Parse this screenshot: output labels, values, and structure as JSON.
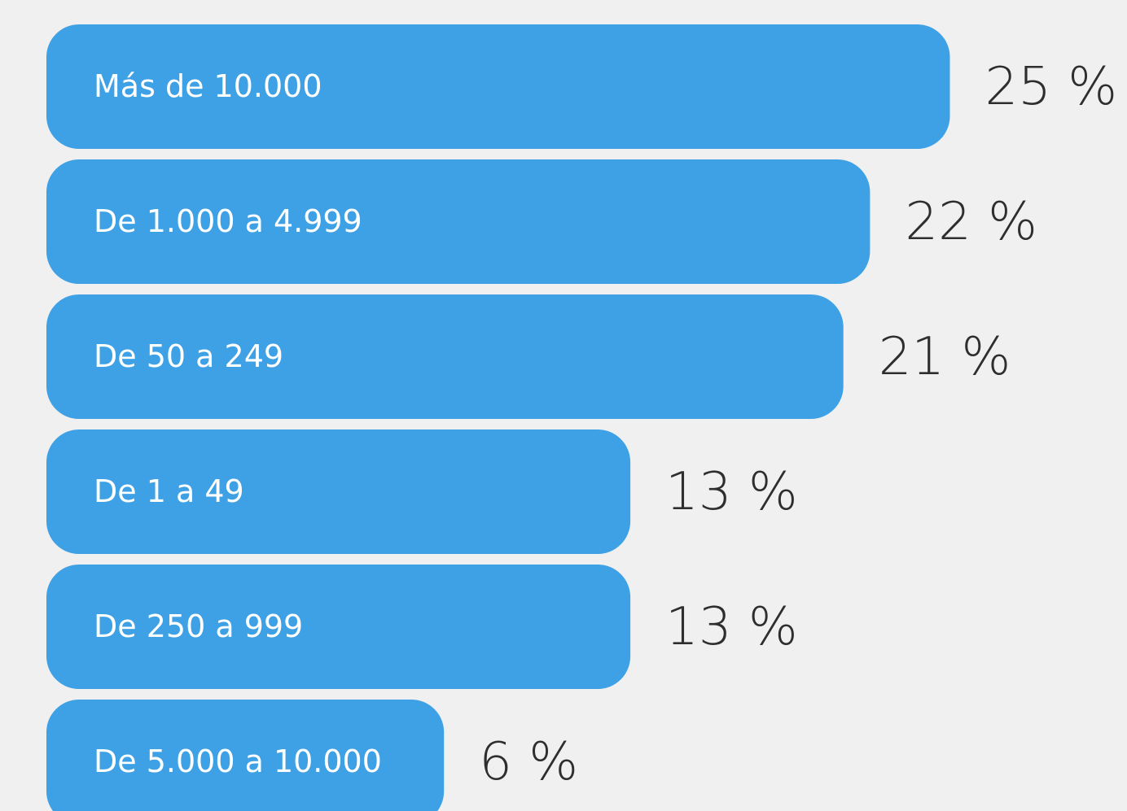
{
  "chart_data": {
    "type": "bar",
    "orientation": "horizontal",
    "categories": [
      "Más de 10.000",
      "De 1.000 a 4.999",
      "De 50 a 249",
      "De 1 a 49",
      "De 250 a 999",
      "De 5.000 a 10.000"
    ],
    "values": [
      25,
      22,
      21,
      13,
      13,
      6
    ],
    "value_labels": [
      "25 %",
      "22 %",
      "21 %",
      "13 %",
      "13 %",
      "6 %"
    ],
    "color": "#3ea1e5"
  }
}
